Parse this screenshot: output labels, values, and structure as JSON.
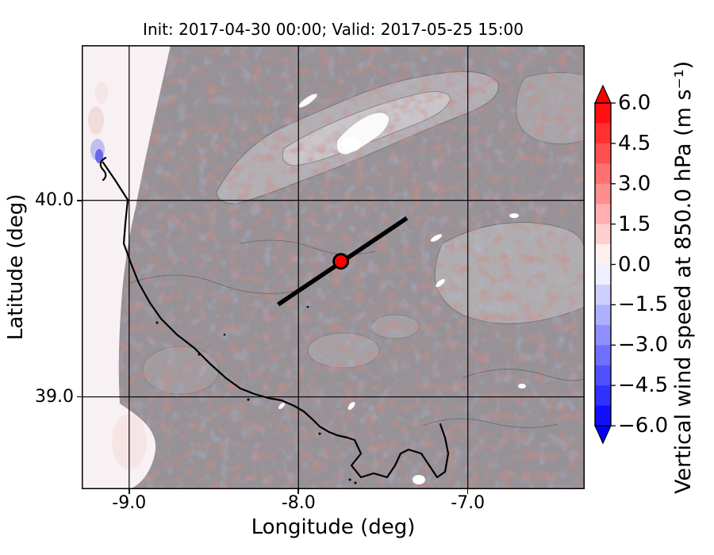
{
  "title": "Init: 2017-04-30 00:00; Valid: 2017-05-25 15:00",
  "axes": {
    "xlabel": "Longitude (deg)",
    "ylabel": "Latitude (deg)",
    "x_tick_labels": [
      "-9.0",
      "-8.0",
      "-7.0"
    ],
    "y_tick_labels": [
      "40.0",
      "39.0"
    ]
  },
  "colorbar": {
    "label": "Vertical wind speed at 850.0 hPa (m s⁻¹)",
    "ticks": [
      "6.0",
      "4.5",
      "3.0",
      "1.5",
      "0.0",
      "−1.5",
      "−3.0",
      "−4.5",
      "−6.0"
    ],
    "over_color": "#ff0000",
    "under_color": "#0000ff",
    "outline_color": "#000000",
    "segment_colors": [
      "#ff1010",
      "#ff3030",
      "#ff5050",
      "#ff7070",
      "#ff8f8f",
      "#ffafaf",
      "#ffcfcf",
      "#ffefef",
      "#efefff",
      "#cfcfff",
      "#afafff",
      "#8f8fff",
      "#7070ff",
      "#5050ff",
      "#3030ff",
      "#1010ff"
    ]
  },
  "chart_data": {
    "type": "heatmap",
    "title": "Init: 2017-04-30 00:00; Valid: 2017-05-25 15:00",
    "xlabel": "Longitude (deg)",
    "ylabel": "Latitude (deg)",
    "xlim": [
      -9.28,
      -6.31
    ],
    "ylim": [
      38.53,
      40.79
    ],
    "x_ticks": [
      -9.0,
      -8.0,
      -7.0
    ],
    "y_ticks": [
      40.0,
      39.0
    ],
    "grid": true,
    "colorbar": {
      "label": "Vertical wind speed at 850.0 hPa (m s⁻¹)",
      "range": [
        -6.0,
        6.0
      ],
      "tick_values": [
        6.0,
        4.5,
        3.0,
        1.5,
        0.0,
        -1.5,
        -3.0,
        -4.5,
        -6.0
      ],
      "level_step": 0.75,
      "colormap": "blue-white-red",
      "extend": "both"
    },
    "annotations": {
      "marker": {
        "lon": -7.75,
        "lat": 39.69,
        "color": "#ff0000",
        "edge": "#000000"
      },
      "transect_line": {
        "from": {
          "lon": -8.12,
          "lat": 39.47
        },
        "to": {
          "lon": -7.36,
          "lat": 39.91
        },
        "color": "#000000"
      }
    },
    "field_summary": "Filled contours of 850 hPa vertical wind speed near 0 m/s (gray with small-scale red/blue wave structures) over coastal Iberia; pale ocean strip at west, black coastline, terrain-like lighter contoured patches"
  }
}
